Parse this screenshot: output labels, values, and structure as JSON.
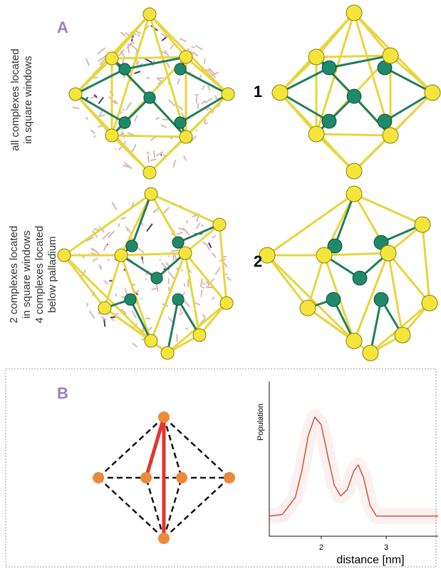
{
  "panel_a": {
    "label": "A",
    "structure_1": {
      "label": "1",
      "caption_lines": [
        "all complexes located",
        "in square windows"
      ]
    },
    "structure_2": {
      "label": "2",
      "caption_lines": [
        "2 complexes located",
        "in square windows",
        "4 complexes located",
        "below palladium"
      ]
    }
  },
  "panel_b": {
    "label": "B"
  },
  "chart_data": {
    "type": "line",
    "xlabel": "distance [nm]",
    "ylabel": "Population",
    "x": [
      1.2,
      1.4,
      1.6,
      1.7,
      1.8,
      1.9,
      2.0,
      2.1,
      2.2,
      2.3,
      2.4,
      2.5,
      2.57,
      2.65,
      2.75,
      2.85,
      3.0,
      3.4,
      3.8
    ],
    "series": [
      {
        "color": "#d9503a",
        "values": [
          0.13,
          0.14,
          0.25,
          0.42,
          0.65,
          0.77,
          0.72,
          0.52,
          0.33,
          0.26,
          0.3,
          0.42,
          0.46,
          0.38,
          0.2,
          0.13,
          0.13,
          0.13,
          0.13
        ]
      }
    ],
    "xlim": [
      1.2,
      3.8
    ],
    "ylim": [
      0,
      1
    ],
    "xticks": [
      2,
      3
    ]
  }
}
